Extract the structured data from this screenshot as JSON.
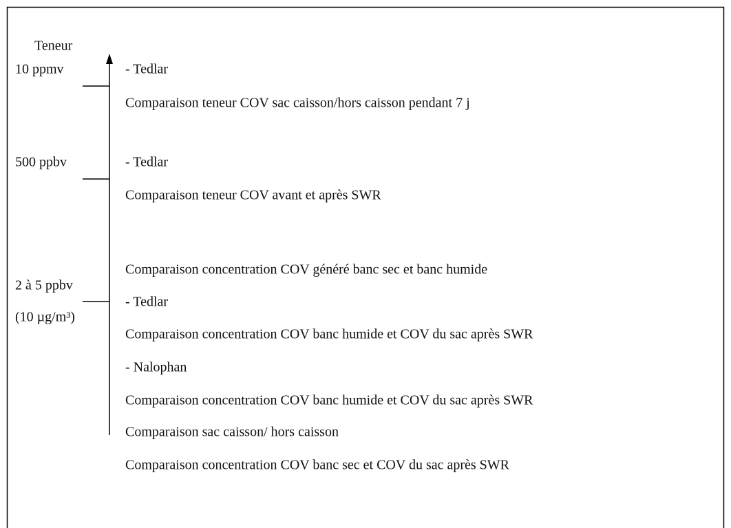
{
  "axis_label": "Teneur",
  "levels": [
    {
      "label": "10 ppmv"
    },
    {
      "label": "500 ppbv"
    },
    {
      "label": "2 à 5 ppbv",
      "sublabel": "(10 µg/m³)"
    }
  ],
  "items": [
    "- Tedlar",
    "Comparaison teneur COV sac caisson/hors caisson pendant 7 j",
    "- Tedlar",
    "Comparaison teneur COV avant et après SWR",
    "Comparaison concentration COV généré banc sec et banc humide",
    "- Tedlar",
    "Comparaison concentration COV banc humide et COV du sac après SWR",
    "- Nalophan",
    "Comparaison concentration COV banc humide et COV du sac après SWR",
    "Comparaison sac caisson/ hors caisson",
    "Comparaison concentration COV banc sec et COV du sac après SWR"
  ]
}
